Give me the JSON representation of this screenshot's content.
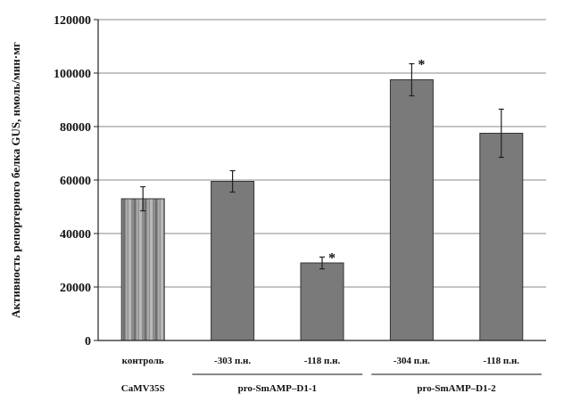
{
  "chart_data": {
    "type": "bar",
    "categories": [
      "контроль",
      "-303 п.н.",
      "-118 п.н.",
      "-304 п.н.",
      "-118 п.н."
    ],
    "values": [
      53000,
      59500,
      29000,
      97500,
      77500
    ],
    "errors": [
      4500,
      4000,
      2200,
      6000,
      9000
    ],
    "significant": [
      "",
      "",
      "*",
      "*",
      ""
    ],
    "groups": [
      {
        "label": "CaMV35S",
        "categories": [
          0
        ]
      },
      {
        "label": "pro-SmAMP–D1-1",
        "categories": [
          1,
          2
        ]
      },
      {
        "label": "pro-SmAMP–D1-2",
        "categories": [
          3,
          4
        ]
      }
    ],
    "ylabel": "Активность репортерного белка GUS, нмоль/мин·мг",
    "xlabel": "",
    "ylim": [
      0,
      120000
    ],
    "yticks": [
      0,
      20000,
      40000,
      60000,
      80000,
      100000,
      120000
    ],
    "grid": true,
    "colors": {
      "bar": "#7a7a7a",
      "bar_border": "#333333",
      "grid": "#8a8a8a",
      "axis": "#222222",
      "control_stripe_light": "#b8b8b8",
      "control_stripe_dark": "#6e6e6e"
    }
  }
}
